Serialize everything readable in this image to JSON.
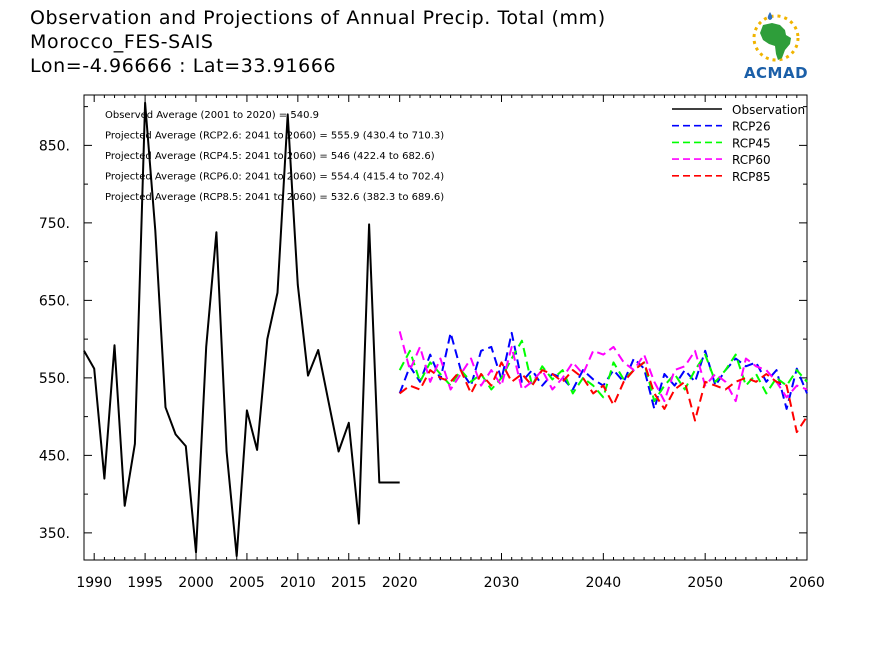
{
  "title": {
    "line1": "Observation and Projections of Annual Precip. Total (mm)",
    "line2": "Morocco_FES-SAIS",
    "line3": "Lon=-4.96666 : Lat=33.91666"
  },
  "logo": {
    "text": "ACMAD"
  },
  "annotations": [
    "Observed Average (2001 to 2020) = 540.9",
    "Projected Average (RCP2.6: 2041 to 2060) = 555.9 (430.4 to 710.3)",
    "Projected Average (RCP4.5: 2041 to 2060) = 546 (422.4 to 682.6)",
    "Projected Average (RCP6.0: 2041 to 2060) = 554.4 (415.4 to 702.4)",
    "Projected Average (RCP8.5: 2041 to 2060) = 532.6 (382.3 to 689.6)"
  ],
  "chart_data": {
    "type": "line",
    "xlim": [
      1989,
      2060
    ],
    "ylim": [
      315,
      915
    ],
    "x_ticks": [
      1990,
      1995,
      2000,
      2005,
      2010,
      2015,
      2020,
      2030,
      2040,
      2050,
      2060
    ],
    "x_tick_labels": [
      "1990",
      "1995",
      "2000",
      "2005",
      "2010",
      "2015",
      "2020",
      "2030",
      "2040",
      "2050",
      "2060"
    ],
    "y_ticks": [
      350,
      450,
      550,
      650,
      750,
      850
    ],
    "y_tick_labels": [
      "350.",
      "450.",
      "550.",
      "650.",
      "750.",
      "850."
    ],
    "legend_position": "top-right",
    "series": [
      {
        "name": "Observation",
        "color": "#000000",
        "dashed": false,
        "x": [
          1989,
          1990,
          1991,
          1992,
          1993,
          1994,
          1995,
          1996,
          1997,
          1998,
          1999,
          2000,
          2001,
          2002,
          2003,
          2004,
          2005,
          2006,
          2007,
          2008,
          2009,
          2010,
          2011,
          2012,
          2013,
          2014,
          2015,
          2016,
          2017,
          2018,
          2019,
          2020
        ],
        "values": [
          585,
          562,
          420,
          592,
          385,
          465,
          905,
          740,
          512,
          477,
          462,
          325,
          590,
          738,
          455,
          320,
          508,
          457,
          600,
          660,
          890,
          670,
          553,
          586,
          520,
          455,
          492,
          362,
          748,
          415,
          415,
          415
        ]
      },
      {
        "name": "RCP26",
        "color": "#0000ff",
        "dashed": true,
        "x": [
          2020,
          2021,
          2022,
          2023,
          2024,
          2025,
          2026,
          2027,
          2028,
          2029,
          2030,
          2031,
          2032,
          2033,
          2034,
          2035,
          2036,
          2037,
          2038,
          2039,
          2040,
          2041,
          2042,
          2043,
          2044,
          2045,
          2046,
          2047,
          2048,
          2049,
          2050,
          2051,
          2052,
          2053,
          2054,
          2055,
          2056,
          2057,
          2058,
          2059,
          2060
        ],
        "values": [
          530,
          565,
          545,
          580,
          548,
          608,
          560,
          540,
          585,
          590,
          548,
          608,
          545,
          560,
          540,
          555,
          550,
          535,
          560,
          548,
          540,
          560,
          545,
          575,
          562,
          510,
          555,
          540,
          560,
          545,
          585,
          540,
          560,
          575,
          565,
          570,
          545,
          560,
          510,
          562,
          530
        ]
      },
      {
        "name": "RCP45",
        "color": "#00ff00",
        "dashed": true,
        "x": [
          2020,
          2021,
          2022,
          2023,
          2024,
          2025,
          2026,
          2027,
          2028,
          2029,
          2030,
          2031,
          2032,
          2033,
          2034,
          2035,
          2036,
          2037,
          2038,
          2039,
          2040,
          2041,
          2042,
          2043,
          2044,
          2045,
          2046,
          2047,
          2048,
          2049,
          2050,
          2051,
          2052,
          2053,
          2054,
          2055,
          2056,
          2057,
          2058,
          2059,
          2060
        ],
        "values": [
          560,
          585,
          545,
          570,
          555,
          540,
          560,
          545,
          555,
          535,
          550,
          575,
          598,
          540,
          565,
          548,
          560,
          530,
          550,
          540,
          525,
          570,
          548,
          560,
          570,
          520,
          540,
          555,
          535,
          560,
          580,
          545,
          560,
          580,
          540,
          555,
          530,
          550,
          540,
          560,
          545
        ]
      },
      {
        "name": "RCP60",
        "color": "#ff00ff",
        "dashed": true,
        "x": [
          2020,
          2021,
          2022,
          2023,
          2024,
          2025,
          2026,
          2027,
          2028,
          2029,
          2030,
          2031,
          2032,
          2033,
          2034,
          2035,
          2036,
          2037,
          2038,
          2039,
          2040,
          2041,
          2042,
          2043,
          2044,
          2045,
          2046,
          2047,
          2048,
          2049,
          2050,
          2051,
          2052,
          2053,
          2054,
          2055,
          2056,
          2057,
          2058,
          2059,
          2060
        ],
        "values": [
          610,
          560,
          590,
          545,
          575,
          535,
          555,
          575,
          540,
          560,
          540,
          590,
          535,
          545,
          560,
          535,
          550,
          570,
          555,
          585,
          580,
          590,
          570,
          560,
          580,
          545,
          520,
          560,
          565,
          585,
          540,
          555,
          545,
          520,
          575,
          565,
          560,
          545,
          525,
          540,
          535
        ]
      },
      {
        "name": "RCP85",
        "color": "#ff0000",
        "dashed": true,
        "x": [
          2020,
          2021,
          2022,
          2023,
          2024,
          2025,
          2026,
          2027,
          2028,
          2029,
          2030,
          2031,
          2032,
          2033,
          2034,
          2035,
          2036,
          2037,
          2038,
          2039,
          2040,
          2041,
          2042,
          2043,
          2044,
          2045,
          2046,
          2047,
          2048,
          2049,
          2050,
          2051,
          2052,
          2053,
          2054,
          2055,
          2056,
          2057,
          2058,
          2059,
          2060
        ],
        "values": [
          530,
          540,
          535,
          560,
          550,
          545,
          560,
          530,
          555,
          540,
          570,
          545,
          555,
          540,
          560,
          555,
          545,
          560,
          550,
          530,
          540,
          515,
          545,
          560,
          570,
          530,
          510,
          535,
          545,
          495,
          545,
          540,
          535,
          545,
          550,
          545,
          555,
          545,
          540,
          480,
          500
        ]
      }
    ]
  }
}
